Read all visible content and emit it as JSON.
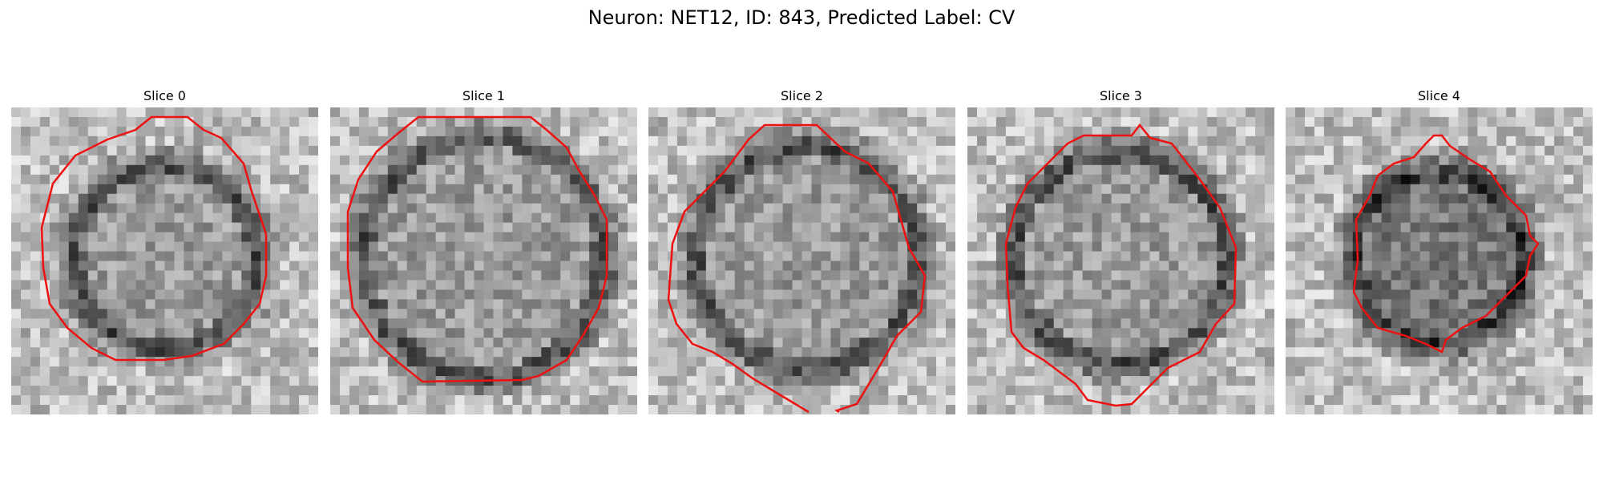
{
  "figure": {
    "title": "Neuron: NET12, ID: 843, Predicted Label: CV"
  },
  "panels": [
    {
      "title": "Slice 0",
      "contour_color": "#ee1111"
    },
    {
      "title": "Slice 1",
      "contour_color": "#ee1111"
    },
    {
      "title": "Slice 2",
      "contour_color": "#ee1111"
    },
    {
      "title": "Slice 3",
      "contour_color": "#ee1111"
    },
    {
      "title": "Slice 4",
      "contour_color": "#ee1111"
    }
  ]
}
